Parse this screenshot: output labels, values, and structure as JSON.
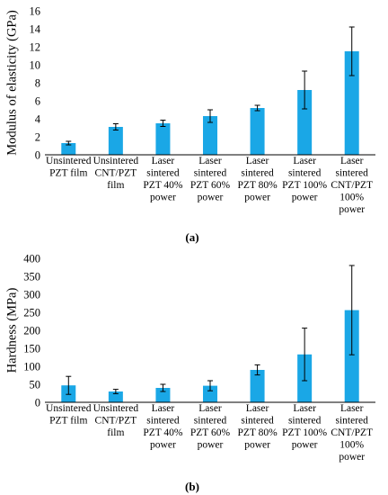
{
  "colors": {
    "bar": "#1aa7e6",
    "axis": "#000000",
    "error_bar": "#000000"
  },
  "chart_data": [
    {
      "type": "bar",
      "panel_label": "(a)",
      "ylabel": "Modulus of elasticity (GPa)",
      "ylim": [
        0,
        16
      ],
      "yticks": [
        0,
        2,
        4,
        6,
        8,
        10,
        12,
        14,
        16
      ],
      "grid": false,
      "categories": [
        [
          "Unsintered",
          "PZT film"
        ],
        [
          "Unsintered",
          "CNT/PZT",
          "film"
        ],
        [
          "Laser",
          "sintered",
          "PZT 40%",
          "power"
        ],
        [
          "Laser",
          "sintered",
          "PZT 60%",
          "power"
        ],
        [
          "Laser",
          "sintered",
          "PZT 80%",
          "power"
        ],
        [
          "Laser",
          "sintered",
          "PZT 100%",
          "power"
        ],
        [
          "Laser",
          "sintered",
          "CNT/PZT",
          "100%",
          "power"
        ]
      ],
      "values": [
        1.3,
        3.1,
        3.5,
        4.3,
        5.2,
        7.2,
        11.5
      ],
      "errors": [
        0.2,
        0.35,
        0.35,
        0.7,
        0.3,
        2.1,
        2.7
      ]
    },
    {
      "type": "bar",
      "panel_label": "(b)",
      "ylabel": "Hardness (MPa)",
      "ylim": [
        0,
        400
      ],
      "yticks": [
        0,
        50,
        100,
        150,
        200,
        250,
        300,
        350,
        400
      ],
      "grid": false,
      "categories": [
        [
          "Unsintered",
          "PZT film"
        ],
        [
          "Unsintered",
          "CNT/PZT",
          "film"
        ],
        [
          "Laser",
          "sintered",
          "PZT 40%",
          "power"
        ],
        [
          "Laser",
          "sintered",
          "PZT 60%",
          "power"
        ],
        [
          "Laser",
          "sintered",
          "PZT 80%",
          "power"
        ],
        [
          "Laser",
          "sintered",
          "PZT 100%",
          "power"
        ],
        [
          "Laser",
          "sintered",
          "CNT/PZT",
          "100%",
          "power"
        ]
      ],
      "values": [
        47,
        30,
        40,
        46,
        90,
        133,
        256
      ],
      "errors": [
        25,
        6,
        10,
        14,
        14,
        73,
        124
      ]
    }
  ]
}
